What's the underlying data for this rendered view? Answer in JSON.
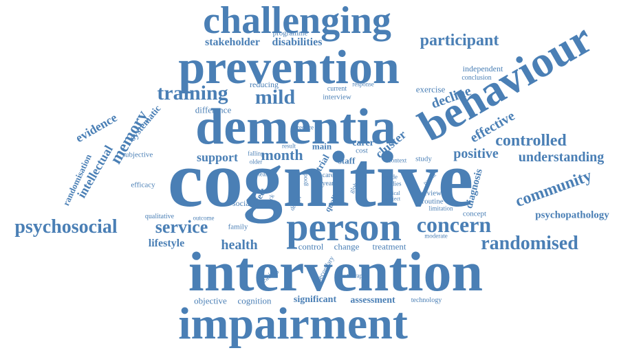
{
  "color": "#4a7fb5",
  "words": {
    "challenging": "challenging",
    "programme": "programme",
    "stakeholder": "stakeholder",
    "disabilities": "disabilities",
    "participant": "participant",
    "prevention": "prevention",
    "behaviour": "behaviour",
    "independent": "independent",
    "conclusion": "conclusion",
    "reducing": "reducing",
    "current": "current",
    "response": "response",
    "exercise": "exercise",
    "training": "training",
    "mild": "mild",
    "interview": "interview",
    "decline": "decline",
    "memory": "memory",
    "difference": "difference",
    "dementia": "dementia",
    "evidence": "evidence",
    "systematic": "systematic",
    "effective": "effective",
    "reduce": "reduce",
    "controlled": "controlled",
    "intellectual": "intellectual",
    "randomisation": "randomisation",
    "subjective": "subjective",
    "falling": "falling",
    "older": "older",
    "result": "result",
    "main": "main",
    "carer": "carer",
    "cost": "cost",
    "cluster": "cluster",
    "positive": "positive",
    "understanding": "understanding",
    "support": "support",
    "month": "month",
    "trial": "trial",
    "staff": "staff",
    "context": "context",
    "study": "study",
    "diagnosis": "diagnosis",
    "cognitive": "cognitive",
    "community": "community",
    "efficacy": "efficacy",
    "team": "team",
    "care": "care",
    "year": "year",
    "grade": "grade",
    "studies": "studies",
    "patient": "patient",
    "good": "good",
    "quality": "quality",
    "global": "global",
    "clinical": "clinical",
    "project": "project",
    "review": "review",
    "routine": "routine",
    "limitation": "limitation",
    "social": "social",
    "effect": "effect",
    "crack": "crack",
    "design": "design",
    "concept": "concept",
    "psychosocial": "psychosocial",
    "qualitative": "qualitative",
    "outcome": "outcome",
    "service": "service",
    "family": "family",
    "person": "person",
    "concern": "concern",
    "psychopathology": "psychopathology",
    "lifestyle": "lifestyle",
    "health": "health",
    "control": "control",
    "change": "change",
    "treatment": "treatment",
    "moderate": "moderate",
    "randomised": "randomised",
    "intervention": "intervention",
    "treating": "treating",
    "secondary": "secondary",
    "therapist": "therapist",
    "objective": "objective",
    "cognition": "cognition",
    "significant": "significant",
    "assessment": "assessment",
    "technology": "technology",
    "impairment": "impairment"
  }
}
